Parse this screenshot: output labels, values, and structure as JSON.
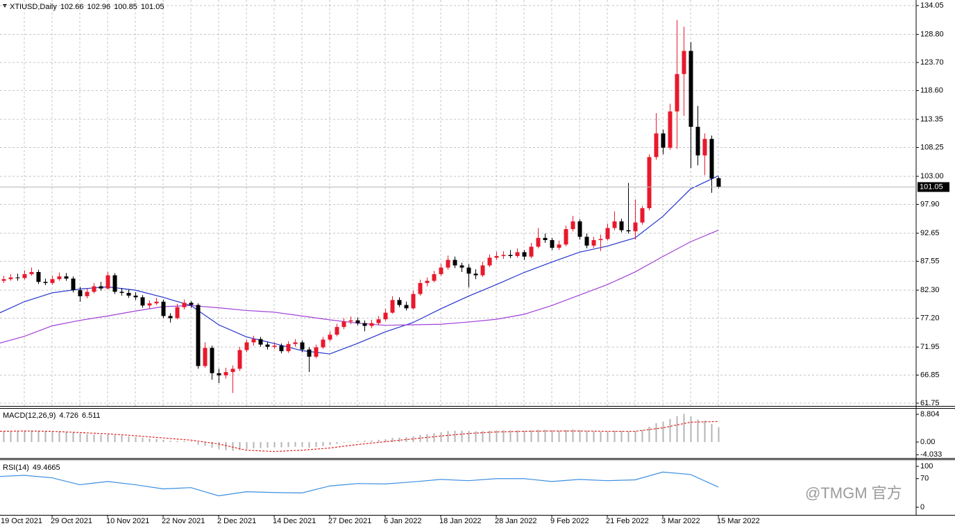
{
  "chart_data": [
    {
      "type": "candlestick",
      "title": "XTIUSD,Daily",
      "categories": [
        "19 Oct 2021",
        null,
        null,
        null,
        null,
        null,
        null,
        null,
        "29 Oct 2021",
        null,
        null,
        null,
        null,
        null,
        null,
        null,
        "10 Nov 2021",
        null,
        null,
        null,
        null,
        null,
        null,
        null,
        "22 Nov 2021",
        null,
        null,
        null,
        null,
        null,
        null,
        null,
        "2 Dec 2021",
        null,
        null,
        null,
        null,
        null,
        null,
        null,
        "14 Dec 2021",
        null,
        null,
        null,
        null,
        null,
        null,
        null,
        "27 Dec 2021",
        null,
        null,
        null,
        null,
        null,
        null,
        null,
        "6 Jan 2022",
        null,
        null,
        null,
        null,
        null,
        null,
        null,
        "18 Jan 2022",
        null,
        null,
        null,
        null,
        null,
        null,
        null,
        "28 Jan 2022",
        null,
        null,
        null,
        null,
        null,
        null,
        null,
        "9 Feb 2022",
        null,
        null,
        null,
        null,
        null,
        null,
        null,
        "21 Feb 2022",
        null,
        null,
        null,
        null,
        null,
        null,
        null,
        "3 Mar 2022",
        null,
        null,
        null,
        null,
        null,
        null,
        null,
        "15 Mar 2022"
      ],
      "candles": [
        [
          83.7,
          84.6,
          83.2,
          84.0
        ],
        [
          84.0,
          84.9,
          83.6,
          84.3
        ],
        [
          84.3,
          85.2,
          84.0,
          84.6
        ],
        [
          84.6,
          85.3,
          84.0,
          84.5
        ],
        [
          84.5,
          85.9,
          84.2,
          85.2
        ],
        [
          85.2,
          86.4,
          84.9,
          85.6
        ],
        [
          85.6,
          86.0,
          83.4,
          83.8
        ],
        [
          83.8,
          84.4,
          83.2,
          83.6
        ],
        [
          83.6,
          84.9,
          83.3,
          84.3
        ],
        [
          84.3,
          85.5,
          84.0,
          84.8
        ],
        [
          84.8,
          85.4,
          84.0,
          84.4
        ],
        [
          84.4,
          84.8,
          81.9,
          82.3
        ],
        [
          82.3,
          82.9,
          80.2,
          81.2
        ],
        [
          81.2,
          82.6,
          80.8,
          82.0
        ],
        [
          82.0,
          83.6,
          81.7,
          83.0
        ],
        [
          83.0,
          83.8,
          82.2,
          82.6
        ],
        [
          82.6,
          85.6,
          82.4,
          85.0
        ],
        [
          85.0,
          85.4,
          81.6,
          82.0
        ],
        [
          82.0,
          82.7,
          81.3,
          81.8
        ],
        [
          81.8,
          82.4,
          80.9,
          81.3
        ],
        [
          81.3,
          81.9,
          80.5,
          81.0
        ],
        [
          81.0,
          81.4,
          79.1,
          79.5
        ],
        [
          79.5,
          80.4,
          78.9,
          79.9
        ],
        [
          79.9,
          80.9,
          79.6,
          80.2
        ],
        [
          80.2,
          80.6,
          77.2,
          77.6
        ],
        [
          77.6,
          78.1,
          76.4,
          77.2
        ],
        [
          77.2,
          79.8,
          77.0,
          79.2
        ],
        [
          79.2,
          80.6,
          78.8,
          80.0
        ],
        [
          80.0,
          80.3,
          79.1,
          79.6
        ],
        [
          79.6,
          79.9,
          68.0,
          68.5
        ],
        [
          68.5,
          72.8,
          68.2,
          71.8
        ],
        [
          71.8,
          72.2,
          66.0,
          67.2
        ],
        [
          67.2,
          68.0,
          65.4,
          66.8
        ],
        [
          66.8,
          68.2,
          66.2,
          67.4
        ],
        [
          67.4,
          68.6,
          63.6,
          68.0
        ],
        [
          68.0,
          72.0,
          67.6,
          71.4
        ],
        [
          71.4,
          73.3,
          71.0,
          72.8
        ],
        [
          72.8,
          74.0,
          72.2,
          73.4
        ],
        [
          73.4,
          73.8,
          72.0,
          72.4
        ],
        [
          72.4,
          72.9,
          71.5,
          72.0
        ],
        [
          72.0,
          72.8,
          71.6,
          72.2
        ],
        [
          72.2,
          72.6,
          70.8,
          71.2
        ],
        [
          71.2,
          73.0,
          70.9,
          72.5
        ],
        [
          72.5,
          73.4,
          72.0,
          72.8
        ],
        [
          72.8,
          73.2,
          71.0,
          71.5
        ],
        [
          71.5,
          71.9,
          67.4,
          70.2
        ],
        [
          70.2,
          72.4,
          69.9,
          71.9
        ],
        [
          71.9,
          73.8,
          71.6,
          73.3
        ],
        [
          73.3,
          74.8,
          73.0,
          74.2
        ],
        [
          74.2,
          76.2,
          73.9,
          75.6
        ],
        [
          75.6,
          77.2,
          75.2,
          76.6
        ],
        [
          76.6,
          77.5,
          76.1,
          76.8
        ],
        [
          76.8,
          77.3,
          75.9,
          76.3
        ],
        [
          76.3,
          76.8,
          74.8,
          75.8
        ],
        [
          75.8,
          76.9,
          75.4,
          76.3
        ],
        [
          76.3,
          77.6,
          75.9,
          77.0
        ],
        [
          77.0,
          78.9,
          76.7,
          78.2
        ],
        [
          78.2,
          81.2,
          78.0,
          80.5
        ],
        [
          80.5,
          81.0,
          79.2,
          79.6
        ],
        [
          79.6,
          80.2,
          78.6,
          79.0
        ],
        [
          79.0,
          82.2,
          78.8,
          81.6
        ],
        [
          81.6,
          84.2,
          81.3,
          83.6
        ],
        [
          83.6,
          84.6,
          83.0,
          84.0
        ],
        [
          84.0,
          85.8,
          83.7,
          85.2
        ],
        [
          85.2,
          87.1,
          84.9,
          86.4
        ],
        [
          86.4,
          88.6,
          86.0,
          87.8
        ],
        [
          87.8,
          88.4,
          86.3,
          86.8
        ],
        [
          86.8,
          87.3,
          85.6,
          86.4
        ],
        [
          86.4,
          87.0,
          82.8,
          85.3
        ],
        [
          85.3,
          86.1,
          84.3,
          85.0
        ],
        [
          85.0,
          87.5,
          84.7,
          86.8
        ],
        [
          86.8,
          88.8,
          86.5,
          88.2
        ],
        [
          88.2,
          89.3,
          87.8,
          88.5
        ],
        [
          88.5,
          89.4,
          88.0,
          88.7
        ],
        [
          88.7,
          89.6,
          88.1,
          88.5
        ],
        [
          88.5,
          89.9,
          88.2,
          89.2
        ],
        [
          89.2,
          89.6,
          87.8,
          88.4
        ],
        [
          88.4,
          90.9,
          88.1,
          90.2
        ],
        [
          90.2,
          93.6,
          89.9,
          91.8
        ],
        [
          91.8,
          92.6,
          90.9,
          91.4
        ],
        [
          91.4,
          91.8,
          89.6,
          90.0
        ],
        [
          90.0,
          91.3,
          89.6,
          90.6
        ],
        [
          90.6,
          94.0,
          90.3,
          93.4
        ],
        [
          93.4,
          95.8,
          93.0,
          94.8
        ],
        [
          94.8,
          95.2,
          91.5,
          92.0
        ],
        [
          92.0,
          92.6,
          89.9,
          90.4
        ],
        [
          90.4,
          92.0,
          90.0,
          91.4
        ],
        [
          91.4,
          92.4,
          89.4,
          91.6
        ],
        [
          91.6,
          94.4,
          91.3,
          93.6
        ],
        [
          93.6,
          96.6,
          93.2,
          94.8
        ],
        [
          94.8,
          95.3,
          92.8,
          93.2
        ],
        [
          93.2,
          101.8,
          92.6,
          93.0
        ],
        [
          93.0,
          98.8,
          91.5,
          94.6
        ],
        [
          94.6,
          97.6,
          94.2,
          97.2
        ],
        [
          97.2,
          107.0,
          96.8,
          106.5
        ],
        [
          106.5,
          114.5,
          106.0,
          110.8
        ],
        [
          110.8,
          111.5,
          107.0,
          108.2
        ],
        [
          108.2,
          116.2,
          107.8,
          114.8
        ],
        [
          114.8,
          131.4,
          108.0,
          121.6
        ],
        [
          121.6,
          130.2,
          114.0,
          125.8
        ],
        [
          125.8,
          127.4,
          104.5,
          112.0
        ],
        [
          112.0,
          115.8,
          105.0,
          106.8
        ],
        [
          106.8,
          110.8,
          103.2,
          109.8
        ],
        [
          109.8,
          110.4,
          100.0,
          102.6
        ],
        [
          102.66,
          102.96,
          100.85,
          101.05
        ]
      ],
      "up_color": "#e8192c",
      "down_color": "#000000",
      "ylim": [
        61.24,
        134.81
      ],
      "yticks": [
        134.05,
        {
          "value": 128.8,
          "label": "128.80"
        },
        {
          "value": 123.7,
          "label": "123.70"
        },
        {
          "value": 118.6,
          "label": "118.60"
        },
        113.35,
        108.25,
        {
          "value": 103,
          "label": "103.00"
        },
        {
          "value": 97.9,
          "label": "97.90"
        },
        92.65,
        87.55,
        {
          "value": 82.3,
          "label": "82.30"
        },
        {
          "value": 77.2,
          "label": "77.20"
        },
        71.95,
        66.85,
        61.75
      ],
      "grid": true,
      "last_price_line": true,
      "lines": [
        {
          "color": "#2233cc",
          "x": [
            0,
            4,
            8,
            12,
            16,
            20,
            24,
            28,
            32,
            36,
            40,
            44,
            48,
            52,
            56,
            60,
            64,
            68,
            72,
            76,
            80,
            84,
            88,
            92,
            96,
            100,
            104
          ],
          "values": [
            77.9,
            80.2,
            81.8,
            82.5,
            82.9,
            82.3,
            81.0,
            79.5,
            76.0,
            73.8,
            72.6,
            71.3,
            70.7,
            72.6,
            74.7,
            76.4,
            78.9,
            81.2,
            83.3,
            85.5,
            87.4,
            89.2,
            90.3,
            91.8,
            95.7,
            100.7,
            103.1
          ]
        },
        {
          "color": "#a040d8",
          "x": [
            0,
            4,
            8,
            12,
            16,
            20,
            24,
            28,
            32,
            36,
            40,
            44,
            48,
            52,
            56,
            60,
            64,
            68,
            72,
            76,
            80,
            84,
            88,
            92,
            96,
            100,
            104
          ],
          "values": [
            72.5,
            73.9,
            75.8,
            76.8,
            77.6,
            78.5,
            79.3,
            79.5,
            79.1,
            78.6,
            78.3,
            77.6,
            76.9,
            76.3,
            75.9,
            76.0,
            76.1,
            76.5,
            77.0,
            77.9,
            79.5,
            81.4,
            83.3,
            85.6,
            88.4,
            91.1,
            93.2
          ]
        }
      ]
    },
    {
      "type": "bar",
      "title": "MACD(12,26,9)",
      "color": "#b4b4b4",
      "values": [
        3.4,
        3.5,
        3.5,
        3.6,
        3.6,
        3.7,
        3.6,
        3.4,
        3.3,
        3.3,
        3.2,
        3.0,
        2.7,
        2.5,
        2.4,
        2.3,
        2.4,
        2.2,
        2.0,
        1.8,
        1.6,
        1.3,
        1.1,
        1.0,
        0.7,
        0.4,
        0.3,
        0.3,
        0.2,
        -0.8,
        -1.2,
        -1.8,
        -2.3,
        -2.6,
        -2.8,
        -2.6,
        -2.3,
        -2.0,
        -1.9,
        -1.8,
        -1.7,
        -1.7,
        -1.6,
        -1.5,
        -1.6,
        -1.8,
        -1.6,
        -1.3,
        -1.0,
        -0.6,
        -0.2,
        0.1,
        0.3,
        0.4,
        0.5,
        0.7,
        0.9,
        1.3,
        1.4,
        1.5,
        1.8,
        2.2,
        2.5,
        2.8,
        3.1,
        3.5,
        3.6,
        3.6,
        3.5,
        3.4,
        3.5,
        3.6,
        3.7,
        3.7,
        3.7,
        3.7,
        3.6,
        3.7,
        3.9,
        3.9,
        3.7,
        3.6,
        3.8,
        4.0,
        3.8,
        3.5,
        3.4,
        3.3,
        3.4,
        3.6,
        3.5,
        3.4,
        3.5,
        3.8,
        4.9,
        6.0,
        6.5,
        7.3,
        8.2,
        8.9,
        8.2,
        7.1,
        6.8,
        5.7,
        4.726
      ],
      "signal": {
        "color": "#e02020",
        "x": [
          0,
          4,
          8,
          12,
          16,
          20,
          24,
          28,
          32,
          36,
          40,
          44,
          48,
          52,
          56,
          60,
          64,
          68,
          72,
          76,
          80,
          84,
          88,
          92,
          96,
          100,
          104
        ],
        "values": [
          3.4,
          3.5,
          3.4,
          3.0,
          2.6,
          2.0,
          1.3,
          0.6,
          -0.6,
          -2.6,
          -3.0,
          -2.6,
          -1.9,
          -0.8,
          0.1,
          1.0,
          1.9,
          2.7,
          3.2,
          3.4,
          3.5,
          3.5,
          3.4,
          3.4,
          4.5,
          6.3,
          6.511
        ]
      },
      "ylim": [
        -4.85,
        10.35
      ],
      "yticks": [
        8.804,
        {
          "value": 0,
          "label": "0.00"
        },
        -4.033
      ]
    },
    {
      "type": "line",
      "title": "RSI(14)",
      "color": "#3c8ee0",
      "x": [
        0,
        4,
        8,
        12,
        16,
        20,
        24,
        28,
        32,
        36,
        40,
        44,
        48,
        52,
        56,
        60,
        64,
        68,
        72,
        76,
        80,
        84,
        88,
        92,
        96,
        100,
        104
      ],
      "values": [
        75,
        78,
        72,
        55,
        63,
        55,
        45,
        48,
        28,
        38,
        36,
        35,
        52,
        58,
        57,
        62,
        68,
        65,
        70,
        70,
        63,
        68,
        65,
        67,
        86,
        80,
        49.4665
      ],
      "ylim": [
        -18.6,
        113.6
      ],
      "yticks": [
        100,
        70,
        0
      ]
    }
  ],
  "watermark": "@TMGM 官方"
}
